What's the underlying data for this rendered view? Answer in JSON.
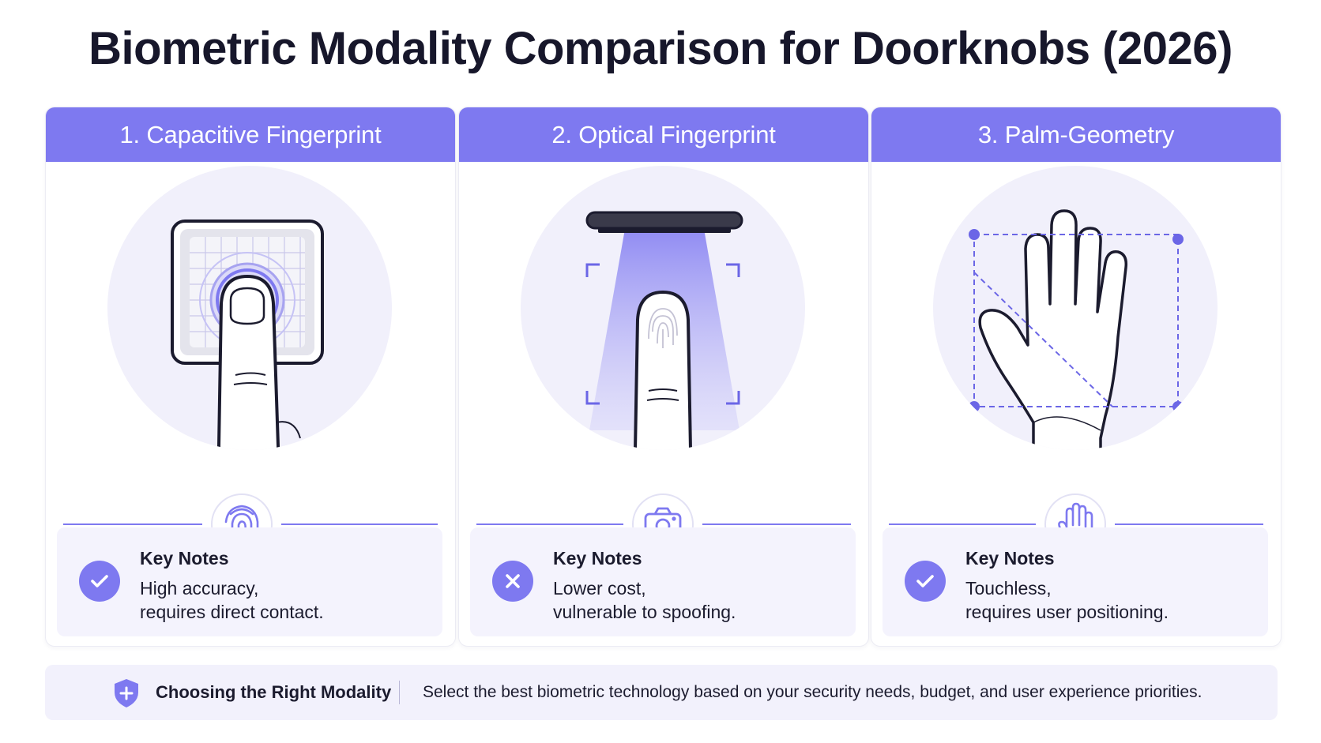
{
  "title": "Biometric Modality Comparison for Doorknobs (2026)",
  "colors": {
    "accent": "#7e79f0",
    "panel": "#f4f3fd",
    "text": "#1b1b2e"
  },
  "cards": [
    {
      "header": "1. Capacitive Fingerprint",
      "illustration_icon": "capacitive-sensor-icon",
      "divider_icon": "fingerprint-icon",
      "status": "check",
      "notes_heading": "Key Notes",
      "notes_line1": "High accuracy,",
      "notes_line2": "requires direct contact."
    },
    {
      "header": "2. Optical Fingerprint",
      "illustration_icon": "optical-scanner-icon",
      "divider_icon": "camera-icon",
      "status": "cross",
      "notes_heading": "Key Notes",
      "notes_line1": "Lower cost,",
      "notes_line2": "vulnerable to spoofing."
    },
    {
      "header": "3. Palm-Geometry",
      "illustration_icon": "palm-scan-icon",
      "divider_icon": "hand-icon",
      "status": "check",
      "notes_heading": "Key Notes",
      "notes_line1": "Touchless,",
      "notes_line2": "requires user positioning."
    }
  ],
  "footer": {
    "icon": "shield-plus-icon",
    "heading": "Choosing the Right Modality",
    "text": "Select the best biometric technology based on your security needs, budget, and user experience priorities."
  }
}
